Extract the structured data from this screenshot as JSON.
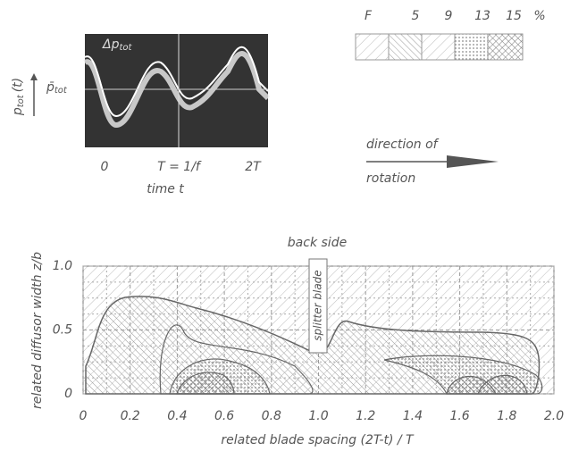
{
  "inset": {
    "ylabel": "p",
    "ylabel_sub": "tot",
    "ylabel_arg": "(t)",
    "mean_symbol": "p̄",
    "mean_sub": "tot",
    "amplitude_symbol": "Δp",
    "amplitude_sub": "tot",
    "time_ticks": [
      "0",
      "T = 1/f",
      "2T"
    ],
    "xlabel": "time t"
  },
  "legend": {
    "title": "F",
    "labels": [
      "5",
      "9",
      "13",
      "15"
    ],
    "unit": "%"
  },
  "direction": {
    "line1": "direction of",
    "line2": "rotation"
  },
  "plot": {
    "title": "back side",
    "xlabel": "related blade spacing (2T-t) / T",
    "ylabel": "related diffusor width z/b",
    "annotation": "splitter blade",
    "xlim": [
      0,
      2
    ],
    "ylim": [
      0,
      1
    ],
    "xticks": [
      0,
      0.2,
      0.4,
      0.6,
      0.8,
      {
        "value": 1,
        "label": "1.0"
      },
      1.2,
      1.4,
      1.6,
      1.8,
      {
        "value": 2,
        "label": "2.0"
      }
    ],
    "yticks": [
      0,
      0.5,
      {
        "value": 1,
        "label": "1.0"
      }
    ]
  }
}
